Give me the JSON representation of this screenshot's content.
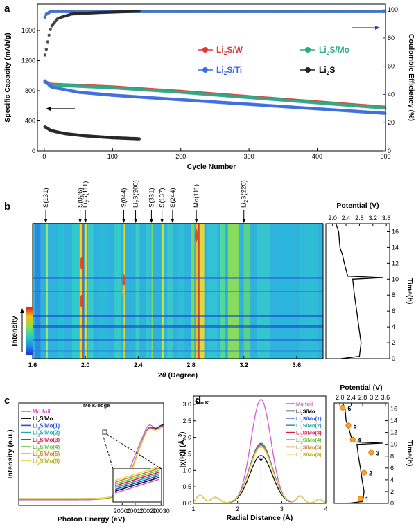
{
  "chart_data": [
    {
      "panel": "a",
      "type": "scatter",
      "xlabel": "Cycle Number",
      "ylabel": "Specific Capacity (mAh/g)",
      "y2label": "Coulombic Efficiency (%)",
      "xlim": [
        -10,
        500
      ],
      "ylim": [
        0,
        1950
      ],
      "y2lim": [
        0,
        104
      ],
      "xticks": [
        "0",
        "100",
        "200",
        "300",
        "400",
        "500"
      ],
      "yticks": [
        "0",
        "400",
        "800",
        "1200",
        "1600"
      ],
      "y2ticks": [
        "0",
        "20",
        "40",
        "60",
        "80",
        "100"
      ],
      "legend": [
        {
          "base": "Li",
          "sub": "2",
          "rest": "S/W",
          "color": "#e0393b"
        },
        {
          "base": "Li",
          "sub": "2",
          "rest": "S/Mo",
          "color": "#2eaa85"
        },
        {
          "base": "Li",
          "sub": "2",
          "rest": "S/Ti",
          "color": "#3d6ce0"
        },
        {
          "base": "Li",
          "sub": "2",
          "rest": "S",
          "color": "#222222"
        }
      ],
      "series": [
        {
          "name": "Li2S/W",
          "color": "#e0393b",
          "x": [
            1,
            10,
            50,
            100,
            200,
            300,
            400,
            500
          ],
          "values": [
            920,
            885,
            870,
            850,
            790,
            720,
            650,
            580
          ]
        },
        {
          "name": "Li2S/Mo",
          "color": "#2eaa85",
          "x": [
            1,
            10,
            50,
            100,
            200,
            300,
            400,
            500
          ],
          "values": [
            910,
            880,
            860,
            840,
            780,
            710,
            640,
            570
          ]
        },
        {
          "name": "Li2S/Ti",
          "color": "#3d6ce0",
          "x": [
            1,
            10,
            50,
            100,
            200,
            300,
            400,
            500
          ],
          "values": [
            930,
            850,
            780,
            740,
            680,
            620,
            560,
            500
          ]
        },
        {
          "name": "Li2S",
          "color": "#222222",
          "x": [
            1,
            10,
            30,
            60,
            100,
            140
          ],
          "values": [
            320,
            270,
            230,
            200,
            175,
            160
          ]
        }
      ],
      "efficiency": [
        {
          "name": "Li2S/W",
          "x": [
            1,
            3,
            6,
            10,
            20,
            500
          ],
          "values": [
            95,
            97,
            98,
            99,
            99,
            99
          ]
        },
        {
          "name": "Li2S",
          "x": [
            1,
            3,
            6,
            10,
            20,
            40,
            80,
            140
          ],
          "values": [
            68,
            72,
            80,
            88,
            94,
            97,
            98,
            99
          ]
        }
      ]
    },
    {
      "panel": "b",
      "type": "heatmap",
      "xlabel_main": "2",
      "xlabel_theta": "θ",
      "xlabel_unit": " (Degree)",
      "xlim": [
        1.6,
        3.8
      ],
      "xticks": [
        "1.6",
        "2.0",
        "2.4",
        "2.8",
        "3.2",
        "3.6"
      ],
      "intensity_label": "Intensity",
      "peaks": [
        {
          "label": "S(131)",
          "x": 1.7
        },
        {
          "label": "S(026)",
          "x": 1.96
        },
        {
          "label": "Li",
          "sub": "2",
          "rest": "S(111)",
          "x": 2.0
        },
        {
          "label": "S(044)",
          "x": 2.29
        },
        {
          "label": "Li",
          "sub": "2",
          "rest": "S(200)",
          "x": 2.38
        },
        {
          "label": "S(331)",
          "x": 2.5
        },
        {
          "label": "S(137)",
          "x": 2.58
        },
        {
          "label": "S(244)",
          "x": 2.66
        },
        {
          "label": "Mo(111)",
          "x": 2.84
        },
        {
          "label": "Li",
          "sub": "2",
          "rest": "S(220)",
          "x": 3.2
        }
      ],
      "potential_profile": {
        "title": "Potential (V)",
        "xticks": [
          "2.0",
          "2.4",
          "2.8",
          "3.2",
          "3.6"
        ],
        "xlim": [
          1.8,
          3.7
        ],
        "ylabel": "Time(h)",
        "ylim": [
          0,
          17
        ],
        "yticks": [
          "0",
          "2",
          "4",
          "6",
          "8",
          "10",
          "12",
          "14",
          "16"
        ],
        "potential": [
          2.25,
          2.8,
          2.85,
          2.78,
          2.72,
          2.65,
          2.6,
          3.5,
          2.45,
          2.35,
          2.3,
          2.22,
          2.18,
          2.1
        ],
        "time": [
          0,
          0.3,
          2,
          4,
          6,
          8,
          10,
          10.2,
          10.4,
          12,
          13,
          14,
          16,
          17
        ]
      }
    },
    {
      "panel": "c",
      "type": "line",
      "title": "Mo K-edge",
      "xlabel": "Photon Energy (eV)",
      "ylabel": "Intensity (a.u.)",
      "xlim": [
        19920,
        20032
      ],
      "xticks": [
        "20000",
        "20010",
        "20020",
        "20030"
      ],
      "legend": [
        {
          "base": "Mo foil",
          "sub": "",
          "rest": "",
          "color": "#d45bd6"
        },
        {
          "base": "Li",
          "sub": "2",
          "rest": "S/Mo",
          "color": "#111111"
        },
        {
          "base": "Li",
          "sub": "2",
          "rest": "S/Mo(1)",
          "color": "#2a4de0"
        },
        {
          "base": "Li",
          "sub": "2",
          "rest": "S/Mo(2)",
          "color": "#2aa6a6"
        },
        {
          "base": "Li",
          "sub": "2",
          "rest": "S/Mo(3)",
          "color": "#d81b4f"
        },
        {
          "base": "Li",
          "sub": "2",
          "rest": "S/Mo(4)",
          "color": "#6ec23a"
        },
        {
          "base": "Li",
          "sub": "2",
          "rest": "S/Mo(5)",
          "color": "#c78a2a"
        },
        {
          "base": "Li",
          "sub": "2",
          "rest": "S/Mo(6)",
          "color": "#e8e05a"
        }
      ]
    },
    {
      "panel": "d",
      "type": "line",
      "title": "Mo K",
      "xlabel": "Radial Distance (Å)",
      "ylabel_main": "|χ(R)| (Å",
      "ylabel_sup": "−3",
      "ylabel_end": ")",
      "xlim": [
        1,
        4
      ],
      "ylim": [
        0,
        3.25
      ],
      "xticks": [
        "1",
        "2",
        "3",
        "4"
      ],
      "yticks": [
        "0.0",
        "0.5",
        "1.0",
        "1.5",
        "2.0",
        "2.5",
        "3.0"
      ],
      "peak_values": {
        "Mo foil": 3.15,
        "Li2S/Mo": 1.45,
        "others": 1.8
      },
      "potential_profile": {
        "title": "Potential (V)",
        "xticks": [
          "2.0",
          "2.4",
          "2.8",
          "3.2",
          "3.6"
        ],
        "ylabel": "Time(h)",
        "yticks": [
          "0",
          "2",
          "4",
          "6",
          "8",
          "10",
          "12",
          "14",
          "16"
        ],
        "markers": [
          {
            "label": "1",
            "potential": 2.72,
            "time": 0.8
          },
          {
            "label": "2",
            "potential": 2.85,
            "time": 5.2
          },
          {
            "label": "3",
            "potential": 3.1,
            "time": 8.6
          },
          {
            "label": "4",
            "potential": 2.45,
            "time": 10.8
          },
          {
            "label": "5",
            "potential": 2.3,
            "time": 13.2
          },
          {
            "label": "6",
            "potential": 2.1,
            "time": 16.2
          }
        ]
      }
    }
  ],
  "panels": {
    "a": "a",
    "b": "b",
    "c": "c",
    "d": "d"
  }
}
